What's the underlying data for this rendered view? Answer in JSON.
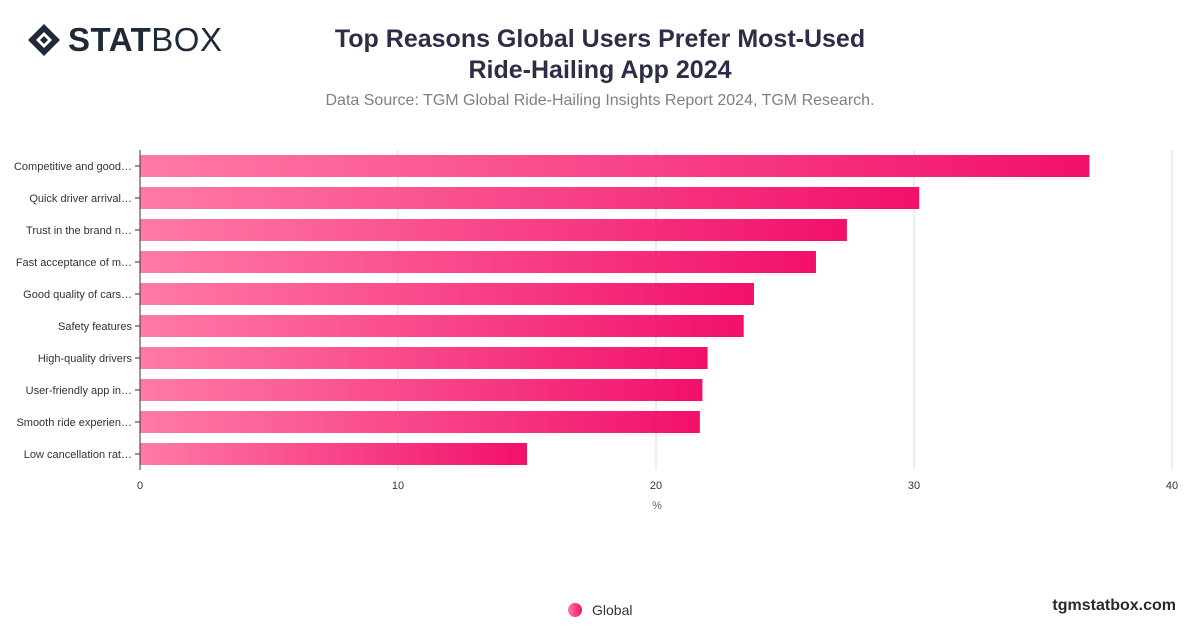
{
  "brand": {
    "logo_bold": "STAT",
    "logo_light": "BOX"
  },
  "title_line1": "Top Reasons Global Users Prefer Most-Used",
  "title_line2": "Ride-Hailing App 2024",
  "subtitle": "Data Source: TGM Global Ride-Hailing Insights Report 2024, TGM Research.",
  "footer": "tgmstatbox.com",
  "colors": {
    "bar_start": "#ff7aa8",
    "bar_end": "#f2106a",
    "grid": "#dedede",
    "text": "#333333"
  },
  "chart_data": {
    "type": "bar",
    "orientation": "horizontal",
    "categories": [
      "Competitive and good…",
      "Quick driver arrival…",
      "Trust in the brand n…",
      "Fast acceptance of m…",
      "Good quality of cars…",
      "Safety features",
      "High-quality drivers",
      "User-friendly app in…",
      "Smooth ride experien…",
      "Low cancellation rat…"
    ],
    "series": [
      {
        "name": "Global",
        "values": [
          36.8,
          30.2,
          27.4,
          26.2,
          23.8,
          23.4,
          22.0,
          21.8,
          21.7,
          15.0
        ]
      }
    ],
    "xlabel": "%",
    "xlim": [
      0,
      40
    ],
    "xticks": [
      0,
      10,
      20,
      30,
      40
    ],
    "grid": true,
    "legend_position": "bottom-center"
  }
}
